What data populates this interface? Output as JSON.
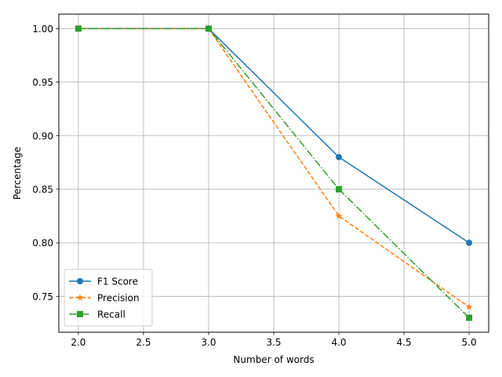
{
  "chart_data": {
    "type": "line",
    "xlabel": "Number of words",
    "ylabel": "Percentage",
    "xlim": [
      1.85,
      5.15
    ],
    "ylim": [
      0.7165,
      1.0135
    ],
    "x_ticks": [
      2.0,
      2.5,
      3.0,
      3.5,
      4.0,
      4.5,
      5.0
    ],
    "x_tick_labels": [
      "2.0",
      "2.5",
      "3.0",
      "3.5",
      "4.0",
      "4.5",
      "5.0"
    ],
    "y_ticks": [
      0.75,
      0.8,
      0.85,
      0.9,
      0.95,
      1.0
    ],
    "y_tick_labels": [
      "0.75",
      "0.80",
      "0.85",
      "0.90",
      "0.95",
      "1.00"
    ],
    "grid": true,
    "legend_position": "lower-left",
    "x": [
      2,
      3,
      4,
      5
    ],
    "series": [
      {
        "name": "F1 Score",
        "values": [
          1.0,
          1.0,
          0.88,
          0.8
        ],
        "color": "#1f77b4",
        "line_style": "solid",
        "marker": "circle"
      },
      {
        "name": "Precision",
        "values": [
          1.0,
          1.0,
          0.825,
          0.74
        ],
        "color": "#ff7f0e",
        "line_style": "dashed",
        "marker": "star"
      },
      {
        "name": "Recall",
        "values": [
          1.0,
          1.0,
          0.85,
          0.73
        ],
        "color": "#2ca02c",
        "line_style": "dashdot",
        "marker": "square"
      }
    ]
  }
}
